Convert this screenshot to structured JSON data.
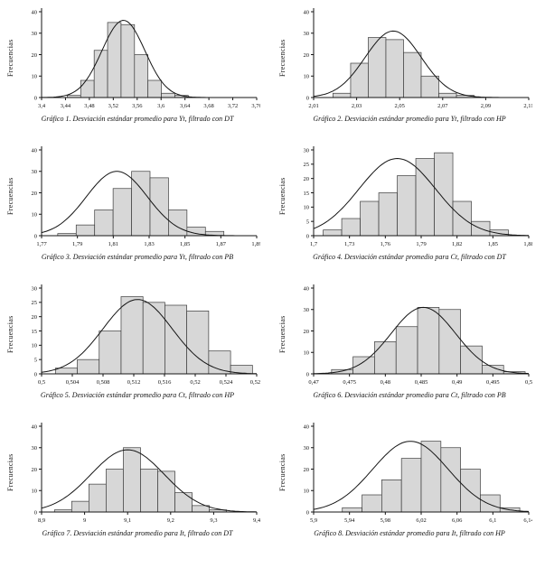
{
  "chart_data": [
    {
      "type": "bar",
      "subtype": "histogram-with-normal-curve",
      "caption": "Gráfico 1. Desviación estándar promedio para Yt, filtrado con DT",
      "ylabel": "Frecuencias",
      "xlim": [
        3.4,
        3.76
      ],
      "ylim": [
        0,
        40
      ],
      "xticks": [
        3.4,
        3.44,
        3.48,
        3.52,
        3.56,
        3.6,
        3.64,
        3.68,
        3.72,
        3.76
      ],
      "xtick_labels": [
        "3,4",
        "3,44",
        "3,48",
        "3,52",
        "3,56",
        "3,6",
        "3,64",
        "3,68",
        "3,72",
        "3,76"
      ],
      "yticks": [
        0,
        10,
        20,
        30,
        40
      ],
      "bin_start": 3.443,
      "bin_width": 0.0225,
      "counts": [
        1,
        8,
        22,
        35,
        34,
        20,
        8,
        2,
        1
      ],
      "curve": {
        "mean": 3.537,
        "sd": 0.036,
        "peak": 36
      }
    },
    {
      "type": "bar",
      "subtype": "histogram-with-normal-curve",
      "caption": "Gráfico 2. Desviación estándar promedio para Yt, filtrado con HP",
      "ylabel": "Frecuencias",
      "xlim": [
        2.01,
        2.11
      ],
      "ylim": [
        0,
        40
      ],
      "xticks": [
        2.01,
        2.03,
        2.05,
        2.07,
        2.09,
        2.11
      ],
      "xtick_labels": [
        "2,01",
        "2,03",
        "2,05",
        "2,07",
        "2,09",
        "2,11"
      ],
      "yticks": [
        0,
        10,
        20,
        30,
        40
      ],
      "bin_start": 2.019,
      "bin_width": 0.0082,
      "counts": [
        2,
        16,
        28,
        27,
        21,
        10,
        2,
        1
      ],
      "curve": {
        "mean": 2.047,
        "sd": 0.013,
        "peak": 31
      }
    },
    {
      "type": "bar",
      "subtype": "histogram-with-normal-curve",
      "caption": "Gráfico 3. Desviación estándar promedio para Yt, filtrado con PB",
      "ylabel": "Frecuencias",
      "xlim": [
        1.77,
        1.89
      ],
      "ylim": [
        0,
        40
      ],
      "xticks": [
        1.77,
        1.79,
        1.81,
        1.83,
        1.85,
        1.87,
        1.89
      ],
      "xtick_labels": [
        "1,77",
        "1,79",
        "1,81",
        "1,83",
        "1,85",
        "1,87",
        "1,89"
      ],
      "yticks": [
        0,
        10,
        20,
        30,
        40
      ],
      "bin_start": 1.779,
      "bin_width": 0.0103,
      "counts": [
        1,
        5,
        12,
        22,
        30,
        27,
        12,
        4,
        2
      ],
      "curve": {
        "mean": 1.812,
        "sd": 0.017,
        "peak": 30
      }
    },
    {
      "type": "bar",
      "subtype": "histogram-with-normal-curve",
      "caption": "Gráfico 4. Desviación estándar promedio para Ct, filtrado con DT",
      "ylabel": "Frecuencias",
      "xlim": [
        1.7,
        1.88
      ],
      "ylim": [
        0,
        30
      ],
      "xticks": [
        1.7,
        1.73,
        1.76,
        1.79,
        1.82,
        1.85,
        1.88
      ],
      "xtick_labels": [
        "1,7",
        "1,73",
        "1,76",
        "1,79",
        "1,82",
        "1,85",
        "1,88"
      ],
      "yticks": [
        0,
        5,
        10,
        15,
        20,
        25,
        30
      ],
      "bin_start": 1.708,
      "bin_width": 0.0155,
      "counts": [
        2,
        6,
        12,
        15,
        21,
        27,
        29,
        12,
        5,
        2
      ],
      "curve": {
        "mean": 1.77,
        "sd": 0.032,
        "peak": 27
      }
    },
    {
      "type": "bar",
      "subtype": "histogram-with-normal-curve",
      "caption": "Gráfico 5. Desviación estándar promedio para Ct, filtrado con HP",
      "ylabel": "Frecuencias",
      "xlim": [
        0.5,
        0.528
      ],
      "ylim": [
        0,
        30
      ],
      "xticks": [
        0.5,
        0.504,
        0.508,
        0.512,
        0.516,
        0.52,
        0.524,
        0.528
      ],
      "xtick_labels": [
        "0,5",
        "0,504",
        "0,508",
        "0,512",
        "0,516",
        "0,52",
        "0,524",
        "0,528"
      ],
      "yticks": [
        0,
        5,
        10,
        15,
        20,
        25,
        30
      ],
      "bin_start": 0.5018,
      "bin_width": 0.00285,
      "counts": [
        2,
        5,
        15,
        27,
        25,
        24,
        22,
        8,
        3
      ],
      "curve": {
        "mean": 0.5125,
        "sd": 0.0045,
        "peak": 26
      }
    },
    {
      "type": "bar",
      "subtype": "histogram-with-normal-curve",
      "caption": "Gráfico 6. Desviación estándar promedio para Ct, filtrado con PB",
      "ylabel": "Frecuencias",
      "xlim": [
        0.47,
        0.5
      ],
      "ylim": [
        0,
        40
      ],
      "xticks": [
        0.47,
        0.475,
        0.48,
        0.485,
        0.49,
        0.495,
        0.5
      ],
      "xtick_labels": [
        "0,47",
        "0,475",
        "0,48",
        "0,485",
        "0,49",
        "0,495",
        "0,5"
      ],
      "yticks": [
        0,
        10,
        20,
        30,
        40
      ],
      "bin_start": 0.4725,
      "bin_width": 0.003,
      "counts": [
        2,
        8,
        15,
        22,
        31,
        30,
        13,
        4,
        1
      ],
      "curve": {
        "mean": 0.4853,
        "sd": 0.0045,
        "peak": 31
      }
    },
    {
      "type": "bar",
      "subtype": "histogram-with-normal-curve",
      "caption": "Gráfico 7. Desviación estándar promedio para It, filtrado con DT",
      "ylabel": "Frecuencias",
      "xlim": [
        8.9,
        9.4
      ],
      "ylim": [
        0,
        40
      ],
      "xticks": [
        8.9,
        9,
        9.1,
        9.2,
        9.3,
        9.4
      ],
      "xtick_labels": [
        "8,9",
        "9",
        "9,1",
        "9,2",
        "9,3",
        "9,4"
      ],
      "yticks": [
        0,
        10,
        20,
        30,
        40
      ],
      "bin_start": 8.93,
      "bin_width": 0.04,
      "counts": [
        1,
        5,
        13,
        20,
        30,
        20,
        19,
        9,
        3,
        1
      ],
      "curve": {
        "mean": 9.1,
        "sd": 0.085,
        "peak": 29
      }
    },
    {
      "type": "bar",
      "subtype": "histogram-with-normal-curve",
      "caption": "Gráfico 8. Desviación estándar promedio para It, filtrado con HP",
      "ylabel": "Frecuencias",
      "xlim": [
        5.9,
        6.14
      ],
      "ylim": [
        0,
        40
      ],
      "xticks": [
        5.9,
        5.94,
        5.98,
        6.02,
        6.06,
        6.1,
        6.14
      ],
      "xtick_labels": [
        "5,9",
        "5,94",
        "5,98",
        "6,02",
        "6,06",
        "6,1",
        "6,14"
      ],
      "yticks": [
        0,
        10,
        20,
        30,
        40
      ],
      "bin_start": 5.932,
      "bin_width": 0.022,
      "counts": [
        2,
        8,
        15,
        25,
        33,
        30,
        20,
        8,
        2
      ],
      "curve": {
        "mean": 6.008,
        "sd": 0.042,
        "peak": 33
      }
    }
  ]
}
